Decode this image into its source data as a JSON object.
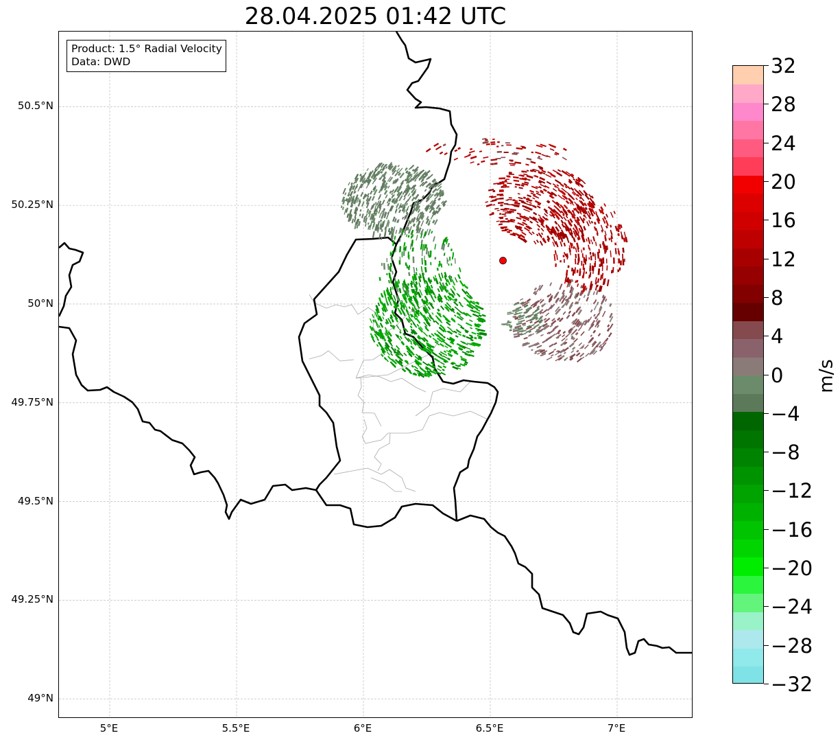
{
  "title": "28.04.2025 01:42 UTC",
  "info_box": {
    "product": "Product: 1.5° Radial Velocity",
    "source": "Data: DWD"
  },
  "map": {
    "lon_range": [
      4.8,
      7.3
    ],
    "lat_range": [
      48.95,
      50.69
    ],
    "x_ticks": [
      {
        "value": 5.0,
        "label": "5°E"
      },
      {
        "value": 5.5,
        "label": "5.5°E"
      },
      {
        "value": 6.0,
        "label": "6°E"
      },
      {
        "value": 6.5,
        "label": "6.5°E"
      },
      {
        "value": 7.0,
        "label": "7°E"
      }
    ],
    "y_ticks": [
      {
        "value": 50.5,
        "label": "50.5°N"
      },
      {
        "value": 50.25,
        "label": "50.25°N"
      },
      {
        "value": 50.0,
        "label": "50°N"
      },
      {
        "value": 49.75,
        "label": "49.75°N"
      },
      {
        "value": 49.5,
        "label": "49.5°N"
      },
      {
        "value": 49.25,
        "label": "49.25°N"
      },
      {
        "value": 49.0,
        "label": "49°N"
      }
    ],
    "grid": true,
    "radar_site": {
      "lon": 6.55,
      "lat": 50.11,
      "color": "#ff0000"
    }
  },
  "colorbar": {
    "unit": "m/s",
    "min": -32,
    "max": 32,
    "step": 2,
    "tick_labels": [
      "32",
      "28",
      "24",
      "20",
      "16",
      "12",
      "8",
      "4",
      "0",
      "−4",
      "−8",
      "−12",
      "−16",
      "−20",
      "−24",
      "−28",
      "−32"
    ],
    "colors": [
      "#7fe2e6",
      "#90e9ea",
      "#ade9ec",
      "#9af2c8",
      "#63f47c",
      "#2cf53d",
      "#00ed00",
      "#00d500",
      "#00c400",
      "#00b200",
      "#00a300",
      "#009300",
      "#008300",
      "#007500",
      "#006600",
      "#5c7a5a",
      "#6b8b6a",
      "#8b7b78",
      "#8a626c",
      "#854a4d",
      "#660000",
      "#820000",
      "#970000",
      "#a80000",
      "#bf0000",
      "#d00000",
      "#dd0000",
      "#f20000",
      "#ff3d59",
      "#ff5a7f",
      "#ff76a4",
      "#ff88cc",
      "#ffa8c8",
      "#ffcfaf"
    ]
  }
}
